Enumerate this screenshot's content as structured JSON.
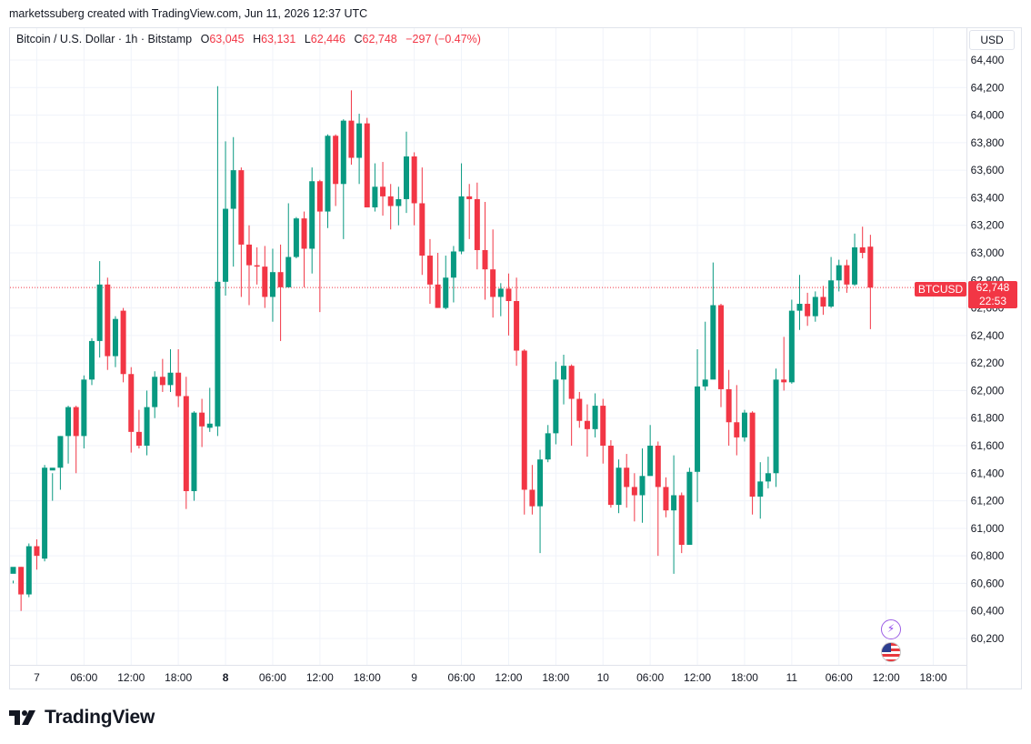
{
  "credit": "marketssuberg created with TradingView.com, Jun 11, 2026 12:37 UTC",
  "legend": {
    "symbol": "Bitcoin / U.S. Dollar · 1h · Bitstamp",
    "open_label": "O",
    "open": "63,045",
    "high_label": "H",
    "high": "63,131",
    "low_label": "L",
    "low": "62,446",
    "close_label": "C",
    "close": "62,748",
    "change": "−297 (−0.47%)"
  },
  "currency": "USD",
  "price_tag": {
    "symbol": "BTCUSD",
    "price": "62,748",
    "countdown": "22:53"
  },
  "logo_text": "TradingView",
  "icons": {
    "events": "lightning-sparkle-icon",
    "flag": "us-flag-icon",
    "logo": "tradingview-logo-icon"
  },
  "colors": {
    "up": "#089981",
    "down": "#f23645",
    "grid": "#f0f3fa",
    "text": "#131722"
  },
  "chart_data": {
    "type": "candlestick",
    "interval": "1h",
    "y_ticks": [
      60200,
      60400,
      60600,
      60800,
      61000,
      61200,
      61400,
      61600,
      61800,
      62000,
      62200,
      62400,
      62600,
      62800,
      63000,
      63200,
      63400,
      63600,
      63800,
      64000,
      64200,
      64400
    ],
    "y_tick_labels": [
      "60,200",
      "60,400",
      "60,600",
      "60,800",
      "61,000",
      "61,200",
      "61,400",
      "61,600",
      "61,800",
      "62,000",
      "62,200",
      "62,400",
      "62,600",
      "62,800",
      "63,000",
      "63,200",
      "63,400",
      "63,600",
      "63,800",
      "64,000",
      "64,200",
      "64,400"
    ],
    "ylim": [
      60050,
      64500
    ],
    "x_labels": [
      {
        "i": 3,
        "text": "7",
        "bold": false
      },
      {
        "i": 9,
        "text": "06:00",
        "bold": false
      },
      {
        "i": 15,
        "text": "12:00",
        "bold": false
      },
      {
        "i": 21,
        "text": "18:00",
        "bold": false
      },
      {
        "i": 27,
        "text": "8",
        "bold": true
      },
      {
        "i": 33,
        "text": "06:00",
        "bold": false
      },
      {
        "i": 39,
        "text": "12:00",
        "bold": false
      },
      {
        "i": 45,
        "text": "18:00",
        "bold": false
      },
      {
        "i": 51,
        "text": "9",
        "bold": false
      },
      {
        "i": 57,
        "text": "06:00",
        "bold": false
      },
      {
        "i": 63,
        "text": "12:00",
        "bold": false
      },
      {
        "i": 69,
        "text": "18:00",
        "bold": false
      },
      {
        "i": 75,
        "text": "10",
        "bold": false
      },
      {
        "i": 81,
        "text": "06:00",
        "bold": false
      },
      {
        "i": 87,
        "text": "12:00",
        "bold": false
      },
      {
        "i": 93,
        "text": "18:00",
        "bold": false
      },
      {
        "i": 99,
        "text": "11",
        "bold": false
      },
      {
        "i": 105,
        "text": "06:00",
        "bold": false
      },
      {
        "i": 111,
        "text": "12:00",
        "bold": false
      },
      {
        "i": 117,
        "text": "18:00",
        "bold": false
      }
    ],
    "last_price": 62748,
    "candles": [
      [
        60670,
        60720,
        60620,
        60600
      ],
      [
        60720,
        60520,
        60720,
        60400
      ],
      [
        60520,
        60870,
        60890,
        60500
      ],
      [
        60870,
        60800,
        60920,
        60700
      ],
      [
        60780,
        61440,
        61460,
        60760
      ],
      [
        61420,
        61440,
        61400,
        61200
      ],
      [
        61440,
        61670,
        61670,
        61280
      ],
      [
        61670,
        61880,
        61890,
        61470
      ],
      [
        61880,
        61670,
        61890,
        61400
      ],
      [
        61670,
        62080,
        62110,
        61580
      ],
      [
        62080,
        62360,
        62380,
        62040
      ],
      [
        62360,
        62770,
        62940,
        62240
      ],
      [
        62770,
        62250,
        62820,
        62150
      ],
      [
        62250,
        62520,
        62540,
        62170
      ],
      [
        62580,
        62120,
        62600,
        62060
      ],
      [
        62120,
        61700,
        62170,
        61550
      ],
      [
        61700,
        61600,
        61860,
        61580
      ],
      [
        61600,
        61880,
        62000,
        61530
      ],
      [
        61880,
        62100,
        62140,
        61800
      ],
      [
        62100,
        62040,
        62230,
        61990
      ],
      [
        62040,
        62130,
        62300,
        61990
      ],
      [
        62130,
        61960,
        62300,
        61880
      ],
      [
        61960,
        61270,
        62100,
        61140
      ],
      [
        61270,
        61840,
        61850,
        61200
      ],
      [
        61840,
        61740,
        61940,
        61590
      ],
      [
        61730,
        61760,
        62020,
        61700
      ],
      [
        61740,
        62790,
        64210,
        61670
      ],
      [
        62790,
        63320,
        63810,
        62690
      ],
      [
        63320,
        63600,
        63840,
        62900
      ],
      [
        63600,
        63060,
        63620,
        62680
      ],
      [
        63060,
        62910,
        63200,
        62620
      ],
      [
        62910,
        62900,
        63040,
        62770
      ],
      [
        62900,
        62680,
        63050,
        62600
      ],
      [
        62680,
        62860,
        63030,
        62500
      ],
      [
        62860,
        62750,
        63060,
        62360
      ],
      [
        62750,
        62970,
        63360,
        62750
      ],
      [
        62970,
        63250,
        63260,
        62960
      ],
      [
        63250,
        63030,
        63300,
        62750
      ],
      [
        63030,
        63520,
        63620,
        62850
      ],
      [
        63520,
        63300,
        63530,
        62570
      ],
      [
        63300,
        63850,
        63860,
        63180
      ],
      [
        63850,
        63500,
        63860,
        63340
      ],
      [
        63500,
        63960,
        63970,
        63100
      ],
      [
        63960,
        63690,
        64180,
        63640
      ],
      [
        63690,
        63940,
        64010,
        63500
      ],
      [
        63940,
        63330,
        63980,
        63350
      ],
      [
        63330,
        63480,
        63650,
        63300
      ],
      [
        63480,
        63410,
        63660,
        63270
      ],
      [
        63410,
        63340,
        63500,
        63170
      ],
      [
        63340,
        63390,
        63480,
        63200
      ],
      [
        63390,
        63700,
        63880,
        63290
      ],
      [
        63700,
        63360,
        63730,
        63200
      ],
      [
        63360,
        62980,
        63620,
        62840
      ],
      [
        62980,
        62770,
        63100,
        62630
      ],
      [
        62770,
        62600,
        63000,
        62600
      ],
      [
        62600,
        62820,
        62980,
        62590
      ],
      [
        62820,
        63010,
        63050,
        62640
      ],
      [
        63010,
        63410,
        63650,
        62990
      ],
      [
        63410,
        63390,
        63500,
        63100
      ],
      [
        63390,
        63020,
        63510,
        62880
      ],
      [
        63020,
        62880,
        63370,
        62660
      ],
      [
        62880,
        62680,
        63170,
        62530
      ],
      [
        62680,
        62740,
        62780,
        62540
      ],
      [
        62740,
        62650,
        62850,
        62400
      ],
      [
        62650,
        62290,
        62820,
        62180
      ],
      [
        62290,
        61280,
        62300,
        61100
      ],
      [
        61280,
        61160,
        61460,
        61100
      ],
      [
        61160,
        61500,
        61570,
        60820
      ],
      [
        61500,
        61690,
        61750,
        61480
      ],
      [
        61690,
        62080,
        62210,
        61610
      ],
      [
        62080,
        62180,
        62260,
        61900
      ],
      [
        62180,
        61940,
        62190,
        61600
      ],
      [
        61940,
        61780,
        61990,
        61730
      ],
      [
        61780,
        61720,
        61900,
        61520
      ],
      [
        61720,
        61890,
        61980,
        61660
      ],
      [
        61890,
        61600,
        61940,
        61470
      ],
      [
        61600,
        61170,
        61640,
        61150
      ],
      [
        61170,
        61440,
        61500,
        61110
      ],
      [
        61440,
        61300,
        61540,
        61150
      ],
      [
        61300,
        61240,
        61400,
        61050
      ],
      [
        61240,
        61380,
        61580,
        61040
      ],
      [
        61380,
        61600,
        61750,
        61430
      ],
      [
        61600,
        61300,
        61630,
        60800
      ],
      [
        61300,
        61130,
        61370,
        61080
      ],
      [
        61130,
        61240,
        61530,
        60670
      ],
      [
        61240,
        60880,
        61260,
        60820
      ],
      [
        60880,
        61410,
        61440,
        60880
      ],
      [
        61410,
        62030,
        62300,
        61190
      ],
      [
        62030,
        62080,
        62500,
        62000
      ],
      [
        62080,
        62620,
        62930,
        62090
      ],
      [
        62620,
        62010,
        62630,
        61880
      ],
      [
        62010,
        61770,
        62150,
        61600
      ],
      [
        61770,
        61660,
        62040,
        61530
      ],
      [
        61660,
        61840,
        61860,
        61630
      ],
      [
        61840,
        61230,
        61850,
        61100
      ],
      [
        61230,
        61340,
        61480,
        61070
      ],
      [
        61340,
        61400,
        61520,
        61290
      ],
      [
        61400,
        62080,
        62160,
        61300
      ],
      [
        62080,
        62060,
        62390,
        62000
      ],
      [
        62060,
        62580,
        62660,
        62050
      ],
      [
        62580,
        62630,
        62840,
        62440
      ],
      [
        62630,
        62540,
        62710,
        62470
      ],
      [
        62540,
        62680,
        62720,
        62500
      ],
      [
        62680,
        62610,
        62760,
        62550
      ],
      [
        62610,
        62800,
        62970,
        62600
      ],
      [
        62800,
        62910,
        62950,
        62720
      ],
      [
        62910,
        62770,
        62950,
        62710
      ],
      [
        62770,
        63040,
        63140,
        62760
      ],
      [
        63040,
        63000,
        63190,
        62960
      ],
      [
        63045,
        62748,
        63131,
        62446
      ]
    ]
  }
}
